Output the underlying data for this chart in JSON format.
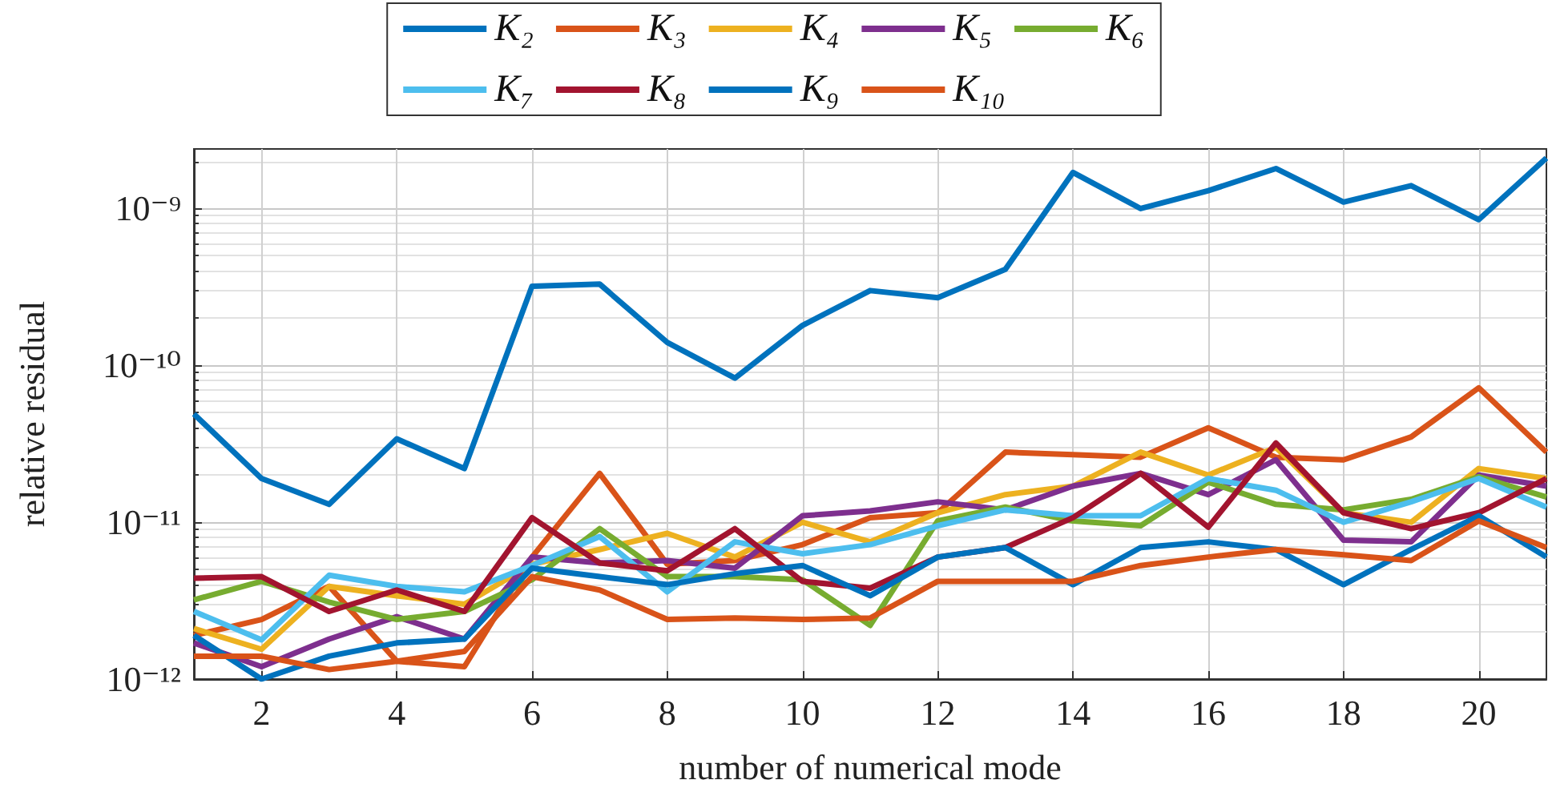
{
  "chart_data": {
    "type": "line",
    "xlabel": "number of numerical mode",
    "ylabel": "relative residual",
    "x": [
      1,
      2,
      3,
      4,
      5,
      6,
      7,
      8,
      9,
      10,
      11,
      12,
      13,
      14,
      15,
      16,
      17,
      18,
      19,
      20,
      21
    ],
    "xlim": [
      1,
      21
    ],
    "xticks": [
      2,
      4,
      6,
      8,
      10,
      12,
      14,
      16,
      18,
      20
    ],
    "ylim": [
      1e-12,
      2.4e-09
    ],
    "log": true,
    "yticks": [
      {
        "value": 1e-12,
        "label": "10⁻¹²"
      },
      {
        "value": 1e-11,
        "label": "10⁻¹¹"
      },
      {
        "value": 1e-10,
        "label": "10⁻¹⁰"
      },
      {
        "value": 1e-09,
        "label": "10⁻⁹"
      }
    ],
    "grid": true,
    "legend": "top",
    "marker": "none",
    "line_style": "solid",
    "series": [
      {
        "name": "K₂",
        "color": "#0072bd",
        "values": [
          4.9e-11,
          1.9e-11,
          1.3e-11,
          3.4e-11,
          2.2e-11,
          3.2e-10,
          3.3e-10,
          1.4e-10,
          8.3e-11,
          1.8e-10,
          3e-10,
          2.7e-10,
          4.1e-10,
          1.7e-09,
          1e-09,
          1.3e-09,
          1.8e-09,
          1.1e-09,
          1.4e-09,
          8.5e-10,
          2.1e-09
        ]
      },
      {
        "name": "K₃",
        "color": "#d95319",
        "values": [
          1.9e-12,
          2.4e-12,
          3.9e-12,
          1.3e-12,
          1.2e-12,
          6e-12,
          2.05e-11,
          5.4e-12,
          5.7e-12,
          7.2e-12,
          1.07e-11,
          1.15e-11,
          2.8e-11,
          2.7e-11,
          2.6e-11,
          4e-11,
          2.6e-11,
          2.5e-11,
          3.5e-11,
          7.2e-11,
          2.8e-11
        ]
      },
      {
        "name": "K₄",
        "color": "#edb120",
        "values": [
          2.1e-12,
          1.55e-12,
          3.9e-12,
          3.4e-12,
          3e-12,
          5.4e-12,
          6.7e-12,
          8.5e-12,
          6e-12,
          1e-11,
          7.5e-12,
          1.15e-11,
          1.5e-11,
          1.7e-11,
          2.8e-11,
          2e-11,
          3e-11,
          1.15e-11,
          1e-11,
          2.2e-11,
          1.9e-11
        ]
      },
      {
        "name": "K₅",
        "color": "#7e2f8e",
        "values": [
          1.7e-12,
          1.2e-12,
          1.8e-12,
          2.5e-12,
          1.8e-12,
          6e-12,
          5.5e-12,
          5.7e-12,
          5.1e-12,
          1.1e-11,
          1.18e-11,
          1.35e-11,
          1.2e-11,
          1.7e-11,
          2.05e-11,
          1.5e-11,
          2.5e-11,
          7.7e-12,
          7.5e-12,
          2e-11,
          1.7e-11
        ]
      },
      {
        "name": "K₆",
        "color": "#77ac30",
        "values": [
          3.2e-12,
          4.2e-12,
          3.1e-12,
          2.4e-12,
          2.7e-12,
          4.3e-12,
          9.1e-12,
          4.5e-12,
          4.5e-12,
          4.3e-12,
          2.2e-12,
          1.02e-11,
          1.25e-11,
          1.02e-11,
          9.5e-12,
          1.8e-11,
          1.3e-11,
          1.2e-11,
          1.4e-11,
          1.95e-11,
          1.45e-11
        ]
      },
      {
        "name": "K₇",
        "color": "#4dbeee",
        "values": [
          2.7e-12,
          1.78e-12,
          4.6e-12,
          3.9e-12,
          3.6e-12,
          5.3e-12,
          8.1e-12,
          3.6e-12,
          7.5e-12,
          6.3e-12,
          7.2e-12,
          9.5e-12,
          1.2e-11,
          1.1e-11,
          1.1e-11,
          1.9e-11,
          1.6e-11,
          1e-11,
          1.35e-11,
          1.9e-11,
          1.25e-11
        ]
      },
      {
        "name": "K₈",
        "color": "#a2142f",
        "values": [
          4.4e-12,
          4.5e-12,
          2.7e-12,
          3.7e-12,
          2.7e-12,
          1.07e-11,
          5.5e-12,
          4.9e-12,
          9.1e-12,
          4.2e-12,
          3.8e-12,
          6e-12,
          6.9e-12,
          1.07e-11,
          2.05e-11,
          9.3e-12,
          3.2e-11,
          1.15e-11,
          9.1e-12,
          1.15e-11,
          1.9e-11
        ]
      },
      {
        "name": "K₉",
        "color": "#0072bd",
        "values": [
          1.9e-12,
          1e-12,
          1.4e-12,
          1.7e-12,
          1.8e-12,
          5.1e-12,
          4.5e-12,
          4e-12,
          4.7e-12,
          5.3e-12,
          3.4e-12,
          6e-12,
          6.9e-12,
          4e-12,
          6.9e-12,
          7.5e-12,
          6.7e-12,
          4e-12,
          6.7e-12,
          1.1e-11,
          6e-12
        ]
      },
      {
        "name": "K₁₀",
        "color": "#d95319",
        "values": [
          1.4e-12,
          1.4e-12,
          1.15e-12,
          1.3e-12,
          1.5e-12,
          4.5e-12,
          3.7e-12,
          2.4e-12,
          2.45e-12,
          2.4e-12,
          2.45e-12,
          4.2e-12,
          4.2e-12,
          4.2e-12,
          5.3e-12,
          6e-12,
          6.7e-12,
          6.2e-12,
          5.7e-12,
          1.02e-11,
          6.9e-12
        ]
      }
    ]
  }
}
